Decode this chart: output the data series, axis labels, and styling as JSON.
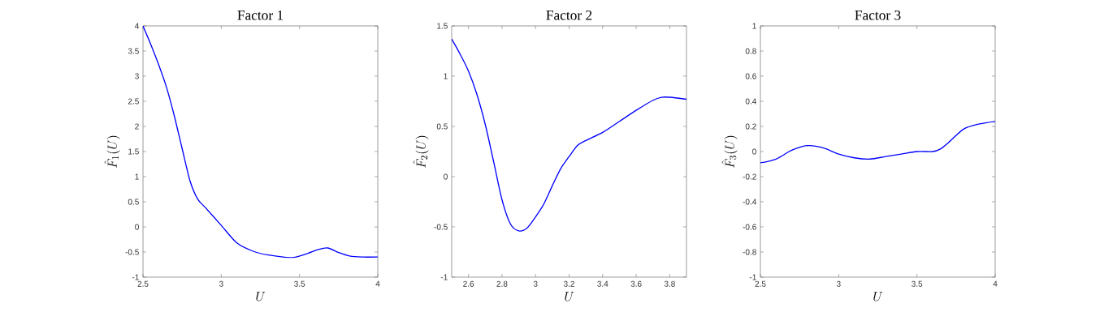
{
  "chart_data": [
    {
      "type": "line",
      "title": "Factor 1",
      "xlabel": "U",
      "ylabel": "\\hat{F}_1(U)",
      "xlim": [
        2.5,
        4
      ],
      "ylim": [
        -1,
        4
      ],
      "xticks": [
        2.5,
        3,
        3.5,
        4
      ],
      "yticks": [
        -1,
        -0.5,
        0,
        0.5,
        1,
        1.5,
        2,
        2.5,
        3,
        3.5,
        4
      ],
      "x": [
        2.5,
        2.55,
        2.6,
        2.65,
        2.7,
        2.75,
        2.8,
        2.85,
        2.9,
        3.0,
        3.1,
        3.2,
        3.3,
        3.45,
        3.55,
        3.62,
        3.68,
        3.75,
        3.82,
        3.9,
        4.0
      ],
      "series": [
        {
          "color": "#0000ff",
          "values": [
            4.0,
            3.63,
            3.23,
            2.78,
            2.21,
            1.56,
            0.92,
            0.55,
            0.38,
            0.03,
            -0.32,
            -0.48,
            -0.56,
            -0.61,
            -0.53,
            -0.45,
            -0.42,
            -0.51,
            -0.58,
            -0.6,
            -0.6
          ]
        }
      ]
    },
    {
      "type": "line",
      "title": "Factor 2",
      "xlabel": "U",
      "ylabel": "\\hat{F}_2(U)",
      "xlim": [
        2.5,
        3.9
      ],
      "ylim": [
        -1,
        1.5
      ],
      "xticks": [
        2.6,
        2.8,
        3,
        3.2,
        3.4,
        3.6,
        3.8
      ],
      "yticks": [
        -1,
        -0.5,
        0,
        0.5,
        1,
        1.5
      ],
      "x": [
        2.5,
        2.55,
        2.6,
        2.65,
        2.7,
        2.75,
        2.8,
        2.85,
        2.9,
        2.95,
        3.0,
        3.05,
        3.1,
        3.15,
        3.2,
        3.25,
        3.3,
        3.4,
        3.5,
        3.6,
        3.7,
        3.75,
        3.8,
        3.9
      ],
      "series": [
        {
          "color": "#0000ff",
          "values": [
            1.37,
            1.22,
            1.05,
            0.82,
            0.52,
            0.15,
            -0.23,
            -0.47,
            -0.54,
            -0.51,
            -0.4,
            -0.27,
            -0.09,
            0.08,
            0.2,
            0.31,
            0.36,
            0.44,
            0.55,
            0.66,
            0.76,
            0.79,
            0.79,
            0.77
          ]
        }
      ]
    },
    {
      "type": "line",
      "title": "Factor 3",
      "xlabel": "U",
      "ylabel": "\\hat{F}_3(U)",
      "xlim": [
        2.5,
        4
      ],
      "ylim": [
        -1,
        1
      ],
      "xticks": [
        2.5,
        3,
        3.5,
        4
      ],
      "yticks": [
        -1,
        -0.8,
        -0.6,
        -0.4,
        -0.2,
        0,
        0.2,
        0.4,
        0.6,
        0.8,
        1
      ],
      "x": [
        2.5,
        2.6,
        2.7,
        2.8,
        2.9,
        3.0,
        3.1,
        3.2,
        3.3,
        3.4,
        3.5,
        3.6,
        3.65,
        3.7,
        3.8,
        3.9,
        4.0
      ],
      "series": [
        {
          "color": "#0000ff",
          "values": [
            -0.09,
            -0.06,
            0.01,
            0.047,
            0.03,
            -0.02,
            -0.05,
            -0.06,
            -0.04,
            -0.02,
            0,
            0,
            0.02,
            0.07,
            0.18,
            0.22,
            0.24
          ]
        }
      ]
    }
  ]
}
